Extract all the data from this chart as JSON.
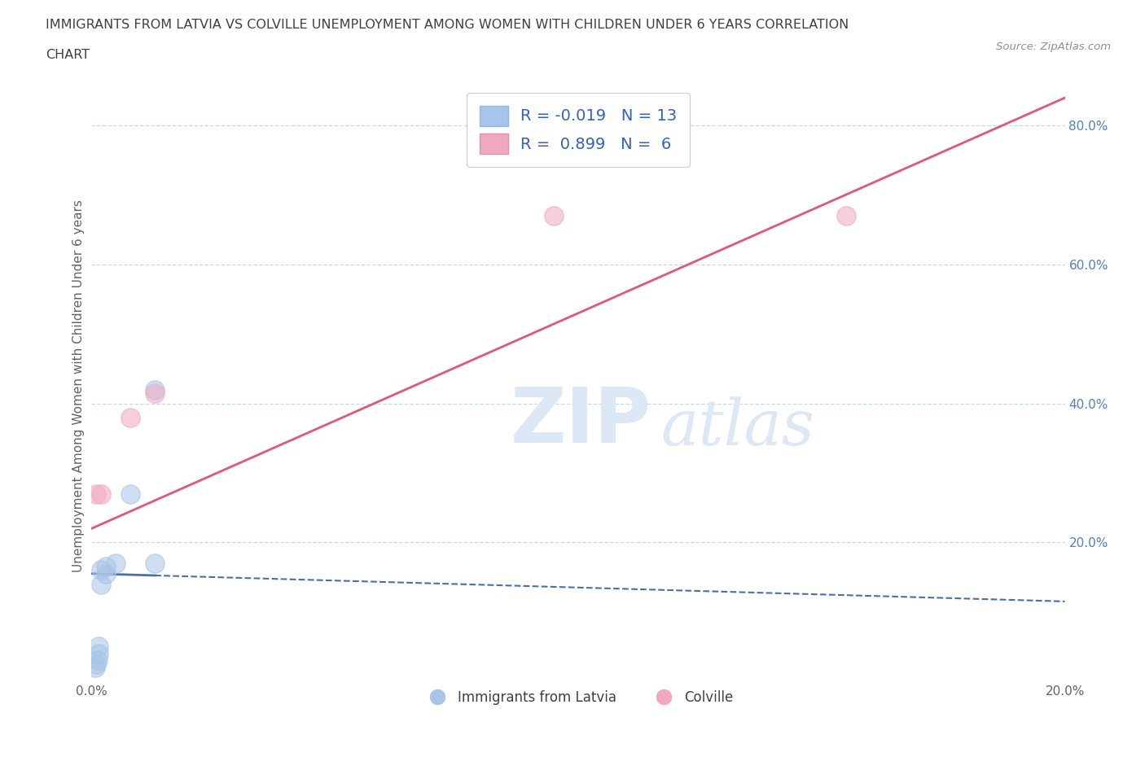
{
  "title_line1": "IMMIGRANTS FROM LATVIA VS COLVILLE UNEMPLOYMENT AMONG WOMEN WITH CHILDREN UNDER 6 YEARS CORRELATION",
  "title_line2": "CHART",
  "source": "Source: ZipAtlas.com",
  "ylabel": "Unemployment Among Women with Children Under 6 years",
  "xlim": [
    0.0,
    0.2
  ],
  "ylim": [
    0.0,
    0.85
  ],
  "yticks": [
    0.0,
    0.2,
    0.4,
    0.6,
    0.8
  ],
  "xticks": [
    0.0,
    0.05,
    0.1,
    0.15,
    0.2
  ],
  "watermark_zip": "ZIP",
  "watermark_atlas": "atlas",
  "blue_scatter_x": [
    0.0008,
    0.001,
    0.0012,
    0.0015,
    0.0015,
    0.002,
    0.002,
    0.003,
    0.003,
    0.005,
    0.008,
    0.013,
    0.013
  ],
  "blue_scatter_y": [
    0.02,
    0.025,
    0.03,
    0.04,
    0.05,
    0.14,
    0.16,
    0.155,
    0.165,
    0.17,
    0.27,
    0.42,
    0.17
  ],
  "pink_scatter_x": [
    0.001,
    0.002,
    0.008,
    0.013,
    0.095,
    0.155
  ],
  "pink_scatter_y": [
    0.27,
    0.27,
    0.38,
    0.415,
    0.67,
    0.67
  ],
  "blue_line_x0": 0.0,
  "blue_line_x1": 0.2,
  "blue_line_y0": 0.155,
  "blue_line_y1": 0.115,
  "pink_line_x0": 0.0,
  "pink_line_x1": 0.2,
  "pink_line_y0": 0.22,
  "pink_line_y1": 0.84,
  "blue_color": "#a8c4e8",
  "pink_color": "#f0a8c0",
  "blue_line_color": "#4a6fa8",
  "pink_line_color": "#e05878",
  "grid_color": "#c8d8e8",
  "title_color": "#404040",
  "axis_label_color": "#606070",
  "right_tick_color": "#5080c0",
  "watermark_color": "#dce8f5",
  "source_color": "#909090",
  "legend_label_color": "#3060c0",
  "bottom_legend_color": "#404040"
}
